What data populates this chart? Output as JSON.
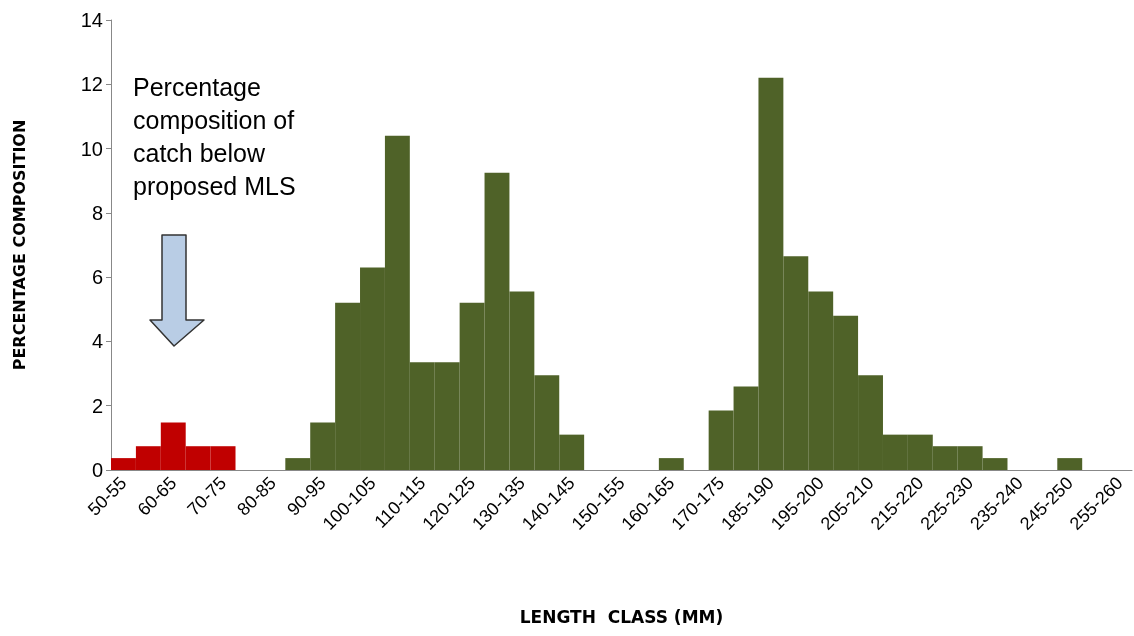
{
  "chart_data": {
    "type": "bar",
    "xlabel": "LENGTH  CLASS (MM)",
    "ylabel": "PERCENTAGE COMPOSITION",
    "annotations": [
      "Percentage composition of catch below proposed MLS"
    ],
    "categories": [
      "50-55",
      null,
      "60-65",
      null,
      "70-75",
      null,
      "80-85",
      null,
      "90-95",
      null,
      "100-105",
      null,
      "110-115",
      null,
      "120-125",
      null,
      "130-135",
      null,
      "140-145",
      null,
      "150-155",
      null,
      "160-165",
      null,
      "170-175",
      null,
      "185-190",
      null,
      "195-200",
      null,
      "205-210",
      null,
      "215-220",
      null,
      "225-230",
      null,
      "235-240",
      null,
      "245-250",
      null,
      "255-260"
    ],
    "values": [
      0.37,
      0.74,
      1.48,
      0.74,
      0.74,
      0,
      0,
      0.37,
      1.48,
      5.2,
      6.3,
      10.4,
      3.35,
      3.35,
      5.2,
      9.25,
      5.55,
      2.95,
      1.1,
      0,
      0,
      0,
      0.37,
      0,
      1.85,
      2.6,
      12.2,
      6.65,
      5.55,
      4.8,
      2.95,
      1.1,
      1.1,
      0.74,
      0.74,
      0.37,
      0,
      0,
      0.37,
      0,
      0
    ],
    "colors": [
      "#c00000",
      "#c00000",
      "#c00000",
      "#c00000",
      "#c00000",
      "#4f6228",
      "#4f6228",
      "#4f6228",
      "#4f6228",
      "#4f6228",
      "#4f6228",
      "#4f6228",
      "#4f6228",
      "#4f6228",
      "#4f6228",
      "#4f6228",
      "#4f6228",
      "#4f6228",
      "#4f6228",
      "#4f6228",
      "#4f6228",
      "#4f6228",
      "#4f6228",
      "#4f6228",
      "#4f6228",
      "#4f6228",
      "#4f6228",
      "#4f6228",
      "#4f6228",
      "#4f6228",
      "#4f6228",
      "#4f6228",
      "#4f6228",
      "#4f6228",
      "#4f6228",
      "#4f6228",
      "#4f6228",
      "#4f6228",
      "#4f6228",
      "#4f6228",
      "#4f6228"
    ],
    "ylim": [
      0,
      14
    ],
    "yticks": [
      0,
      2,
      4,
      6,
      8,
      10,
      12,
      14
    ],
    "grid": false
  }
}
